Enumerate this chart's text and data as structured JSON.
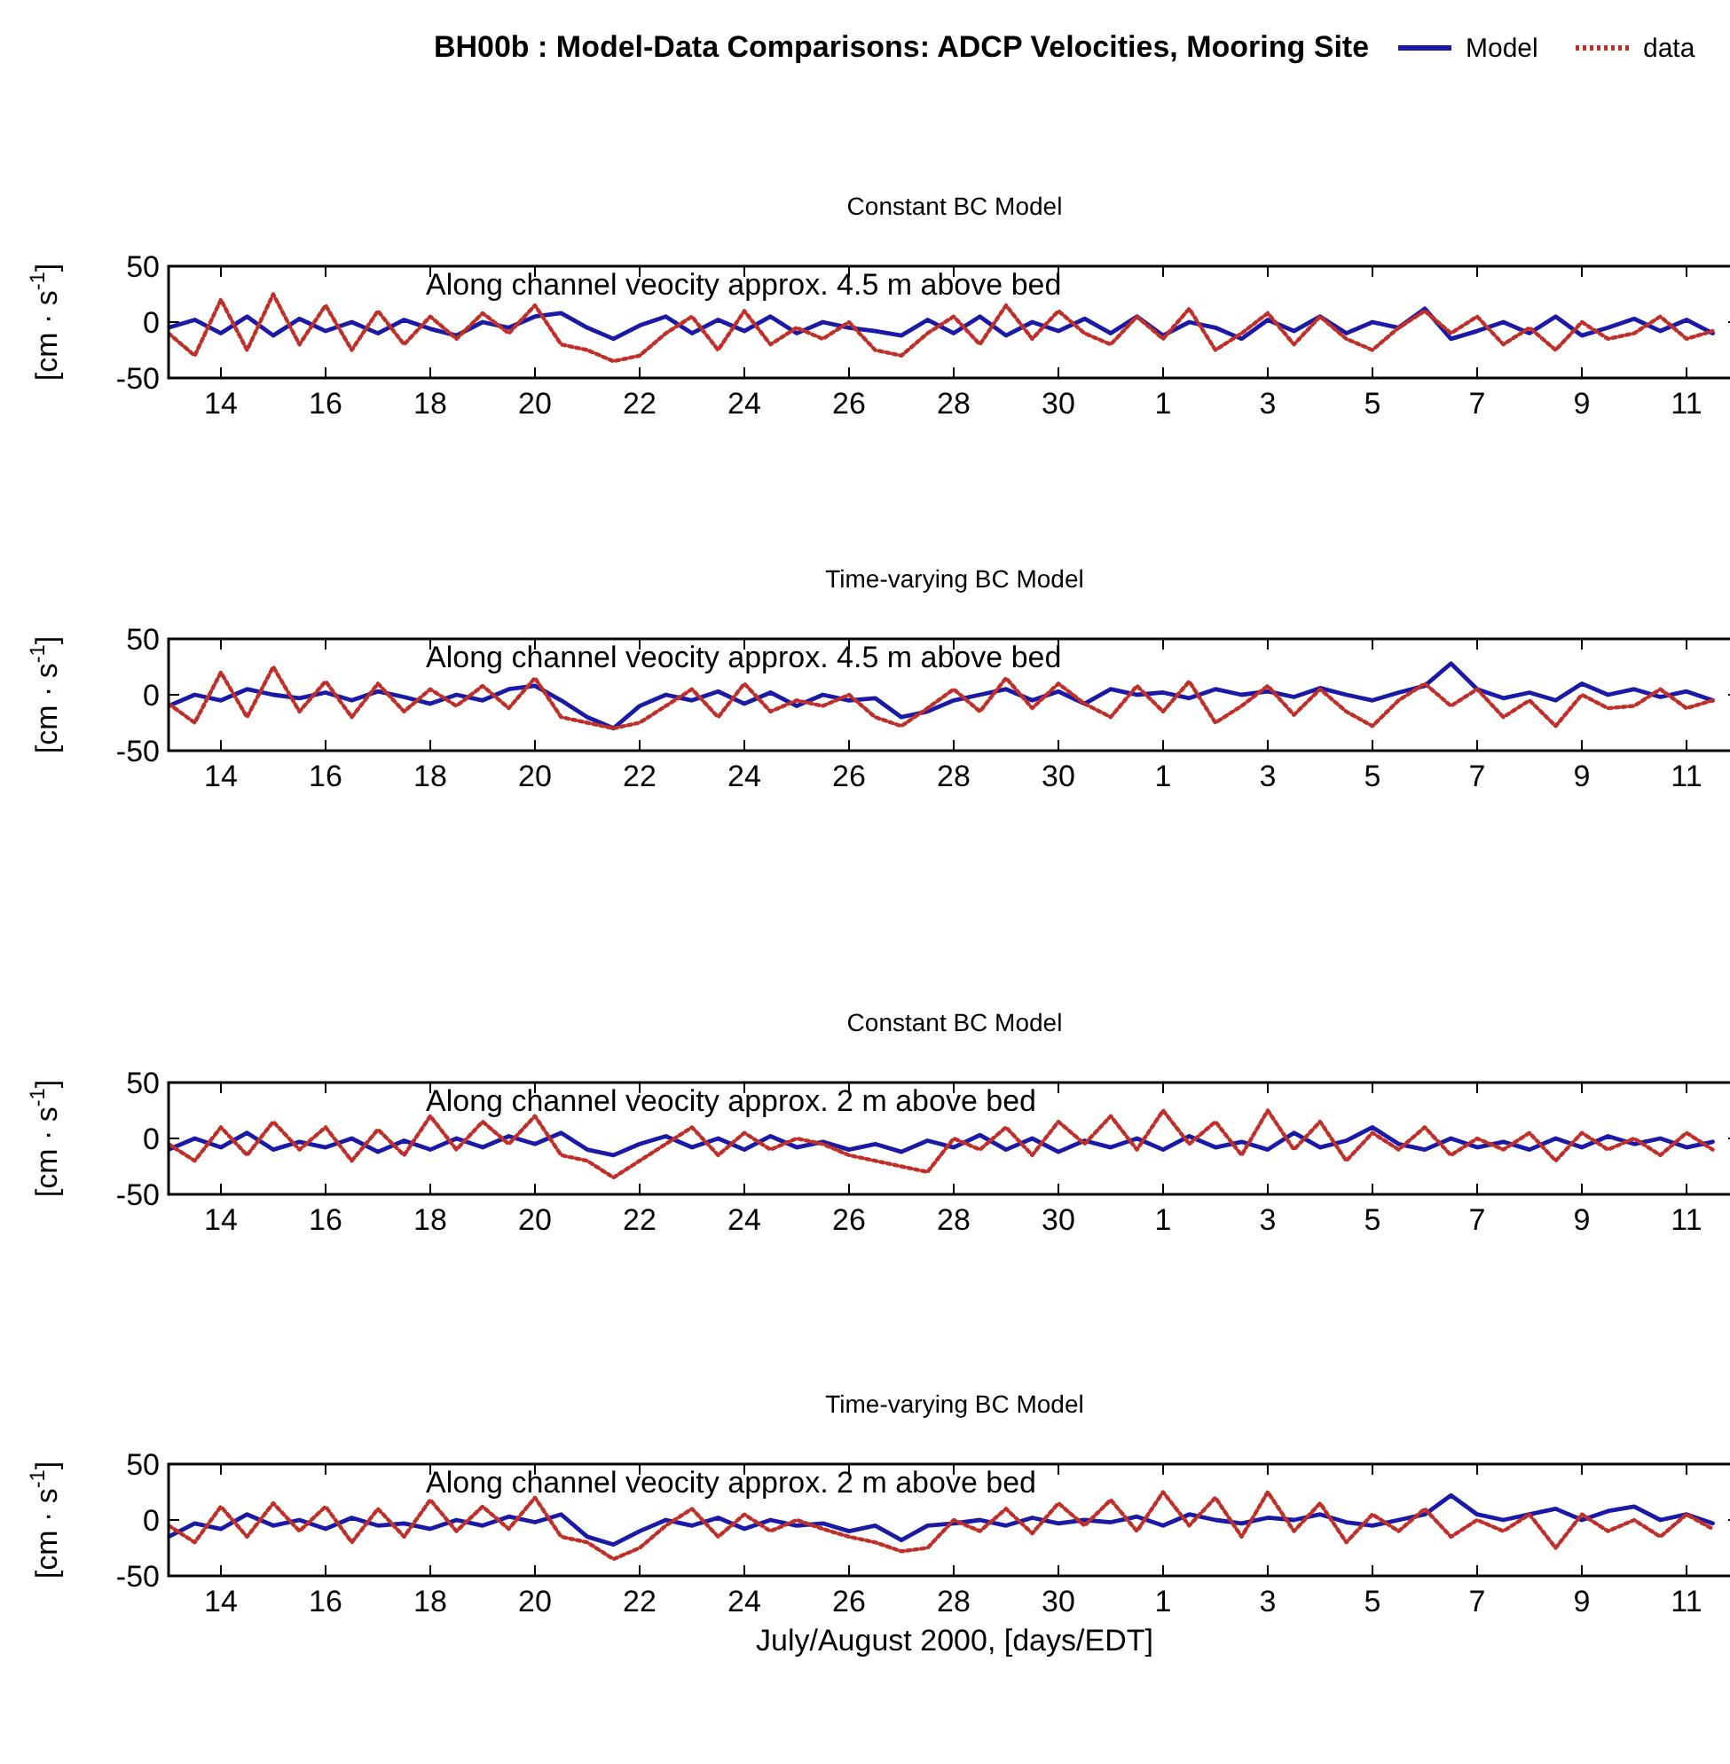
{
  "chart_data": [
    {
      "type": "line",
      "title": "BH00b : Model-Data Comparisons: ADCP Velocities, Mooring Site",
      "subtitle": "Constant BC Model",
      "x": [
        "2000-07-13T00:00",
        "2000-07-13T12:00",
        "2000-07-14T00:00",
        "2000-07-14T12:00",
        "2000-07-15T00:00",
        "2000-07-15T12:00",
        "2000-07-16T00:00",
        "2000-07-16T12:00",
        "2000-07-17T00:00",
        "2000-07-17T12:00",
        "2000-07-18T00:00",
        "2000-07-18T12:00",
        "2000-07-19T00:00",
        "2000-07-19T12:00",
        "2000-07-20T00:00",
        "2000-07-20T12:00",
        "2000-07-21T00:00",
        "2000-07-21T12:00",
        "2000-07-22T00:00",
        "2000-07-22T12:00",
        "2000-07-23T00:00",
        "2000-07-23T12:00",
        "2000-07-24T00:00",
        "2000-07-24T12:00",
        "2000-07-25T00:00",
        "2000-07-25T12:00",
        "2000-07-26T00:00",
        "2000-07-26T12:00",
        "2000-07-27T00:00",
        "2000-07-27T12:00",
        "2000-07-28T00:00",
        "2000-07-28T12:00",
        "2000-07-29T00:00",
        "2000-07-29T12:00",
        "2000-07-30T00:00",
        "2000-07-30T12:00",
        "2000-07-31T00:00",
        "2000-07-31T12:00",
        "2000-08-01T00:00",
        "2000-08-01T12:00",
        "2000-08-02T00:00",
        "2000-08-02T12:00",
        "2000-08-03T00:00",
        "2000-08-03T12:00",
        "2000-08-04T00:00",
        "2000-08-04T12:00",
        "2000-08-05T00:00",
        "2000-08-05T12:00",
        "2000-08-06T00:00",
        "2000-08-06T12:00",
        "2000-08-07T00:00",
        "2000-08-07T12:00",
        "2000-08-08T00:00",
        "2000-08-08T12:00",
        "2000-08-09T00:00",
        "2000-08-09T12:00",
        "2000-08-10T00:00",
        "2000-08-10T12:00",
        "2000-08-11T00:00",
        "2000-08-11T12:00"
      ],
      "ylabel": "[cm · s$^{-1}$]",
      "annotations": [
        "Along channel veocity approx. 4.5 m above bed"
      ],
      "legend": "top right",
      "tick_labels": "xy",
      "xlim": [
        "2000-07-13",
        "2000-08-12"
      ],
      "ylim": [
        -50,
        50
      ],
      "yticks": [
        -50,
        0,
        50
      ],
      "xticks": [
        {
          "value": "2000-07-14",
          "label": "14"
        },
        {
          "value": "2000-07-16",
          "label": "16"
        },
        {
          "value": "2000-07-18",
          "label": "18"
        },
        {
          "value": "2000-07-20",
          "label": "20"
        },
        {
          "value": "2000-07-22",
          "label": "22"
        },
        {
          "value": "2000-07-24",
          "label": "24"
        },
        {
          "value": "2000-07-26",
          "label": "26"
        },
        {
          "value": "2000-07-28",
          "label": "28"
        },
        {
          "value": "2000-07-30",
          "label": "30"
        },
        {
          "value": "2000-08-01",
          "label": "1"
        },
        {
          "value": "2000-08-03",
          "label": "3"
        },
        {
          "value": "2000-08-05",
          "label": "5"
        },
        {
          "value": "2000-08-07",
          "label": "7"
        },
        {
          "value": "2000-08-09",
          "label": "9"
        },
        {
          "value": "2000-08-11",
          "label": "11"
        }
      ],
      "series": [
        {
          "name": "Model",
          "color": "#1a1aa6",
          "line_style": "solid",
          "values": [
            -5,
            2,
            -10,
            5,
            -12,
            3,
            -8,
            0,
            -10,
            2,
            -6,
            -12,
            0,
            -5,
            5,
            8,
            -5,
            -15,
            -3,
            5,
            -10,
            2,
            -8,
            5,
            -10,
            0,
            -5,
            -8,
            -12,
            2,
            -10,
            5,
            -12,
            0,
            -8,
            3,
            -10,
            5,
            -12,
            0,
            -5,
            -15,
            2,
            -8,
            5,
            -10,
            0,
            -5,
            12,
            -15,
            -8,
            0,
            -10,
            5,
            -12,
            -5,
            3,
            -8,
            2,
            -10
          ]
        },
        {
          "name": "data",
          "color": "#c0302a",
          "line_style": "dotted",
          "values": [
            -10,
            -30,
            20,
            -25,
            25,
            -20,
            15,
            -25,
            10,
            -20,
            5,
            -15,
            8,
            -10,
            15,
            -20,
            -25,
            -35,
            -30,
            -10,
            5,
            -25,
            10,
            -20,
            -5,
            -15,
            0,
            -25,
            -30,
            -10,
            5,
            -20,
            15,
            -15,
            10,
            -10,
            -20,
            5,
            -15,
            12,
            -25,
            -10,
            8,
            -20,
            5,
            -15,
            -25,
            -5,
            10,
            -10,
            5,
            -20,
            -5,
            -25,
            0,
            -15,
            -10,
            5,
            -15,
            -8
          ]
        }
      ]
    },
    {
      "type": "line",
      "title": "Time-varying BC Model",
      "x": [
        "2000-07-13T00:00",
        "2000-07-13T12:00",
        "2000-07-14T00:00",
        "2000-07-14T12:00",
        "2000-07-15T00:00",
        "2000-07-15T12:00",
        "2000-07-16T00:00",
        "2000-07-16T12:00",
        "2000-07-17T00:00",
        "2000-07-17T12:00",
        "2000-07-18T00:00",
        "2000-07-18T12:00",
        "2000-07-19T00:00",
        "2000-07-19T12:00",
        "2000-07-20T00:00",
        "2000-07-20T12:00",
        "2000-07-21T00:00",
        "2000-07-21T12:00",
        "2000-07-22T00:00",
        "2000-07-22T12:00",
        "2000-07-23T00:00",
        "2000-07-23T12:00",
        "2000-07-24T00:00",
        "2000-07-24T12:00",
        "2000-07-25T00:00",
        "2000-07-25T12:00",
        "2000-07-26T00:00",
        "2000-07-26T12:00",
        "2000-07-27T00:00",
        "2000-07-27T12:00",
        "2000-07-28T00:00",
        "2000-07-28T12:00",
        "2000-07-29T00:00",
        "2000-07-29T12:00",
        "2000-07-30T00:00",
        "2000-07-30T12:00",
        "2000-07-31T00:00",
        "2000-07-31T12:00",
        "2000-08-01T00:00",
        "2000-08-01T12:00",
        "2000-08-02T00:00",
        "2000-08-02T12:00",
        "2000-08-03T00:00",
        "2000-08-03T12:00",
        "2000-08-04T00:00",
        "2000-08-04T12:00",
        "2000-08-05T00:00",
        "2000-08-05T12:00",
        "2000-08-06T00:00",
        "2000-08-06T12:00",
        "2000-08-07T00:00",
        "2000-08-07T12:00",
        "2000-08-08T00:00",
        "2000-08-08T12:00",
        "2000-08-09T00:00",
        "2000-08-09T12:00",
        "2000-08-10T00:00",
        "2000-08-10T12:00",
        "2000-08-11T00:00",
        "2000-08-11T12:00"
      ],
      "ylabel": "[cm · s$^{-1}$]",
      "annotations": [
        "Along channel veocity approx. 4.5 m above bed"
      ],
      "tick_labels": "xy",
      "xlim": [
        "2000-07-13",
        "2000-08-12"
      ],
      "ylim": [
        -50,
        50
      ],
      "yticks": [
        -50,
        0,
        50
      ],
      "xticks": [
        {
          "value": "2000-07-14",
          "label": "14"
        },
        {
          "value": "2000-07-16",
          "label": "16"
        },
        {
          "value": "2000-07-18",
          "label": "18"
        },
        {
          "value": "2000-07-20",
          "label": "20"
        },
        {
          "value": "2000-07-22",
          "label": "22"
        },
        {
          "value": "2000-07-24",
          "label": "24"
        },
        {
          "value": "2000-07-26",
          "label": "26"
        },
        {
          "value": "2000-07-28",
          "label": "28"
        },
        {
          "value": "2000-07-30",
          "label": "30"
        },
        {
          "value": "2000-08-01",
          "label": "1"
        },
        {
          "value": "2000-08-03",
          "label": "3"
        },
        {
          "value": "2000-08-05",
          "label": "5"
        },
        {
          "value": "2000-08-07",
          "label": "7"
        },
        {
          "value": "2000-08-09",
          "label": "9"
        },
        {
          "value": "2000-08-11",
          "label": "11"
        }
      ],
      "series": [
        {
          "color": "#1a1aa6",
          "line_style": "solid",
          "values": [
            -10,
            0,
            -5,
            5,
            0,
            -3,
            2,
            -5,
            3,
            -2,
            -8,
            0,
            -5,
            5,
            8,
            -5,
            -20,
            -30,
            -10,
            0,
            -5,
            3,
            -8,
            2,
            -10,
            0,
            -5,
            -3,
            -20,
            -15,
            -5,
            0,
            5,
            -5,
            3,
            -8,
            5,
            0,
            2,
            -3,
            5,
            0,
            3,
            -2,
            6,
            0,
            -5,
            2,
            8,
            28,
            5,
            -3,
            2,
            -5,
            10,
            0,
            5,
            -2,
            3,
            -5
          ]
        },
        {
          "color": "#c0302a",
          "line_style": "dotted",
          "values": [
            -8,
            -25,
            20,
            -20,
            25,
            -15,
            12,
            -20,
            10,
            -15,
            5,
            -10,
            8,
            -12,
            15,
            -20,
            -25,
            -30,
            -25,
            -10,
            5,
            -20,
            10,
            -15,
            -5,
            -10,
            0,
            -20,
            -28,
            -12,
            5,
            -15,
            15,
            -12,
            10,
            -8,
            -20,
            8,
            -15,
            12,
            -25,
            -10,
            8,
            -18,
            5,
            -15,
            -28,
            -5,
            10,
            -10,
            5,
            -20,
            -5,
            -28,
            0,
            -12,
            -10,
            5,
            -12,
            -5
          ]
        }
      ]
    },
    {
      "type": "line",
      "title": "Constant BC Model",
      "x": [
        "2000-07-13T00:00",
        "2000-07-13T12:00",
        "2000-07-14T00:00",
        "2000-07-14T12:00",
        "2000-07-15T00:00",
        "2000-07-15T12:00",
        "2000-07-16T00:00",
        "2000-07-16T12:00",
        "2000-07-17T00:00",
        "2000-07-17T12:00",
        "2000-07-18T00:00",
        "2000-07-18T12:00",
        "2000-07-19T00:00",
        "2000-07-19T12:00",
        "2000-07-20T00:00",
        "2000-07-20T12:00",
        "2000-07-21T00:00",
        "2000-07-21T12:00",
        "2000-07-22T00:00",
        "2000-07-22T12:00",
        "2000-07-23T00:00",
        "2000-07-23T12:00",
        "2000-07-24T00:00",
        "2000-07-24T12:00",
        "2000-07-25T00:00",
        "2000-07-25T12:00",
        "2000-07-26T00:00",
        "2000-07-26T12:00",
        "2000-07-27T00:00",
        "2000-07-27T12:00",
        "2000-07-28T00:00",
        "2000-07-28T12:00",
        "2000-07-29T00:00",
        "2000-07-29T12:00",
        "2000-07-30T00:00",
        "2000-07-30T12:00",
        "2000-07-31T00:00",
        "2000-07-31T12:00",
        "2000-08-01T00:00",
        "2000-08-01T12:00",
        "2000-08-02T00:00",
        "2000-08-02T12:00",
        "2000-08-03T00:00",
        "2000-08-03T12:00",
        "2000-08-04T00:00",
        "2000-08-04T12:00",
        "2000-08-05T00:00",
        "2000-08-05T12:00",
        "2000-08-06T00:00",
        "2000-08-06T12:00",
        "2000-08-07T00:00",
        "2000-08-07T12:00",
        "2000-08-08T00:00",
        "2000-08-08T12:00",
        "2000-08-09T00:00",
        "2000-08-09T12:00",
        "2000-08-10T00:00",
        "2000-08-10T12:00",
        "2000-08-11T00:00",
        "2000-08-11T12:00"
      ],
      "ylabel": "[cm · s$^{-1}$]",
      "annotations": [
        "Along channel veocity approx. 2 m above bed"
      ],
      "tick_labels": "xy",
      "xlim": [
        "2000-07-13",
        "2000-08-12"
      ],
      "ylim": [
        -50,
        50
      ],
      "yticks": [
        -50,
        0,
        50
      ],
      "xticks": [
        {
          "value": "2000-07-14",
          "label": "14"
        },
        {
          "value": "2000-07-16",
          "label": "16"
        },
        {
          "value": "2000-07-18",
          "label": "18"
        },
        {
          "value": "2000-07-20",
          "label": "20"
        },
        {
          "value": "2000-07-22",
          "label": "22"
        },
        {
          "value": "2000-07-24",
          "label": "24"
        },
        {
          "value": "2000-07-26",
          "label": "26"
        },
        {
          "value": "2000-07-28",
          "label": "28"
        },
        {
          "value": "2000-07-30",
          "label": "30"
        },
        {
          "value": "2000-08-01",
          "label": "1"
        },
        {
          "value": "2000-08-03",
          "label": "3"
        },
        {
          "value": "2000-08-05",
          "label": "5"
        },
        {
          "value": "2000-08-07",
          "label": "7"
        },
        {
          "value": "2000-08-09",
          "label": "9"
        },
        {
          "value": "2000-08-11",
          "label": "11"
        }
      ],
      "series": [
        {
          "color": "#1a1aa6",
          "line_style": "solid",
          "values": [
            -10,
            0,
            -8,
            5,
            -10,
            -3,
            -8,
            0,
            -12,
            -2,
            -10,
            0,
            -8,
            2,
            -5,
            5,
            -10,
            -15,
            -5,
            2,
            -8,
            0,
            -10,
            2,
            -8,
            -3,
            -10,
            -5,
            -12,
            -2,
            -8,
            3,
            -10,
            0,
            -12,
            -2,
            -8,
            0,
            -10,
            2,
            -8,
            -3,
            -10,
            5,
            -8,
            -2,
            10,
            -5,
            -10,
            0,
            -8,
            -3,
            -10,
            0,
            -8,
            2,
            -5,
            0,
            -8,
            -3
          ]
        },
        {
          "color": "#c0302a",
          "line_style": "dotted",
          "values": [
            -5,
            -20,
            10,
            -15,
            15,
            -10,
            10,
            -20,
            8,
            -15,
            20,
            -10,
            15,
            -5,
            20,
            -15,
            -20,
            -35,
            -20,
            -5,
            10,
            -15,
            5,
            -10,
            0,
            -5,
            -15,
            -20,
            -25,
            -30,
            0,
            -10,
            10,
            -15,
            15,
            -5,
            20,
            -10,
            25,
            -5,
            15,
            -15,
            25,
            -10,
            15,
            -20,
            5,
            -10,
            10,
            -15,
            0,
            -10,
            5,
            -20,
            5,
            -10,
            0,
            -15,
            5,
            -10
          ]
        }
      ]
    },
    {
      "type": "line",
      "title": "Time-varying BC Model",
      "xlabel": "July/August 2000, [days/EDT]",
      "x": [
        "2000-07-13T00:00",
        "2000-07-13T12:00",
        "2000-07-14T00:00",
        "2000-07-14T12:00",
        "2000-07-15T00:00",
        "2000-07-15T12:00",
        "2000-07-16T00:00",
        "2000-07-16T12:00",
        "2000-07-17T00:00",
        "2000-07-17T12:00",
        "2000-07-18T00:00",
        "2000-07-18T12:00",
        "2000-07-19T00:00",
        "2000-07-19T12:00",
        "2000-07-20T00:00",
        "2000-07-20T12:00",
        "2000-07-21T00:00",
        "2000-07-21T12:00",
        "2000-07-22T00:00",
        "2000-07-22T12:00",
        "2000-07-23T00:00",
        "2000-07-23T12:00",
        "2000-07-24T00:00",
        "2000-07-24T12:00",
        "2000-07-25T00:00",
        "2000-07-25T12:00",
        "2000-07-26T00:00",
        "2000-07-26T12:00",
        "2000-07-27T00:00",
        "2000-07-27T12:00",
        "2000-07-28T00:00",
        "2000-07-28T12:00",
        "2000-07-29T00:00",
        "2000-07-29T12:00",
        "2000-07-30T00:00",
        "2000-07-30T12:00",
        "2000-07-31T00:00",
        "2000-07-31T12:00",
        "2000-08-01T00:00",
        "2000-08-01T12:00",
        "2000-08-02T00:00",
        "2000-08-02T12:00",
        "2000-08-03T00:00",
        "2000-08-03T12:00",
        "2000-08-04T00:00",
        "2000-08-04T12:00",
        "2000-08-05T00:00",
        "2000-08-05T12:00",
        "2000-08-06T00:00",
        "2000-08-06T12:00",
        "2000-08-07T00:00",
        "2000-08-07T12:00",
        "2000-08-08T00:00",
        "2000-08-08T12:00",
        "2000-08-09T00:00",
        "2000-08-09T12:00",
        "2000-08-10T00:00",
        "2000-08-10T12:00",
        "2000-08-11T00:00",
        "2000-08-11T12:00"
      ],
      "ylabel": "[cm · s$^{-1}$]",
      "annotations": [
        "Along channel veocity approx. 2 m above bed"
      ],
      "tick_labels": "xy",
      "xlim": [
        "2000-07-13",
        "2000-08-12"
      ],
      "ylim": [
        -50,
        50
      ],
      "yticks": [
        -50,
        0,
        50
      ],
      "xticks": [
        {
          "value": "2000-07-14",
          "label": "14"
        },
        {
          "value": "2000-07-16",
          "label": "16"
        },
        {
          "value": "2000-07-18",
          "label": "18"
        },
        {
          "value": "2000-07-20",
          "label": "20"
        },
        {
          "value": "2000-07-22",
          "label": "22"
        },
        {
          "value": "2000-07-24",
          "label": "24"
        },
        {
          "value": "2000-07-26",
          "label": "26"
        },
        {
          "value": "2000-07-28",
          "label": "28"
        },
        {
          "value": "2000-07-30",
          "label": "30"
        },
        {
          "value": "2000-08-01",
          "label": "1"
        },
        {
          "value": "2000-08-03",
          "label": "3"
        },
        {
          "value": "2000-08-05",
          "label": "5"
        },
        {
          "value": "2000-08-07",
          "label": "7"
        },
        {
          "value": "2000-08-09",
          "label": "9"
        },
        {
          "value": "2000-08-11",
          "label": "11"
        }
      ],
      "series": [
        {
          "color": "#1a1aa6",
          "line_style": "solid",
          "values": [
            -15,
            -3,
            -8,
            5,
            -5,
            0,
            -8,
            2,
            -5,
            -3,
            -8,
            0,
            -5,
            3,
            -2,
            5,
            -15,
            -22,
            -10,
            0,
            -5,
            2,
            -8,
            0,
            -5,
            -3,
            -10,
            -5,
            -18,
            -5,
            -3,
            0,
            -5,
            2,
            -3,
            0,
            -2,
            3,
            -5,
            5,
            0,
            -3,
            2,
            0,
            5,
            -2,
            -5,
            0,
            5,
            22,
            5,
            0,
            5,
            10,
            0,
            8,
            12,
            0,
            5,
            -3
          ]
        },
        {
          "color": "#c0302a",
          "line_style": "dotted",
          "values": [
            -5,
            -20,
            12,
            -15,
            15,
            -10,
            12,
            -20,
            10,
            -15,
            18,
            -10,
            12,
            -8,
            20,
            -15,
            -20,
            -35,
            -25,
            -5,
            10,
            -15,
            5,
            -10,
            0,
            -8,
            -15,
            -20,
            -28,
            -25,
            0,
            -10,
            10,
            -12,
            15,
            -5,
            18,
            -10,
            25,
            -5,
            20,
            -15,
            25,
            -10,
            15,
            -20,
            5,
            -10,
            10,
            -15,
            0,
            -10,
            5,
            -25,
            5,
            -10,
            0,
            -15,
            5,
            -8
          ]
        }
      ]
    }
  ]
}
